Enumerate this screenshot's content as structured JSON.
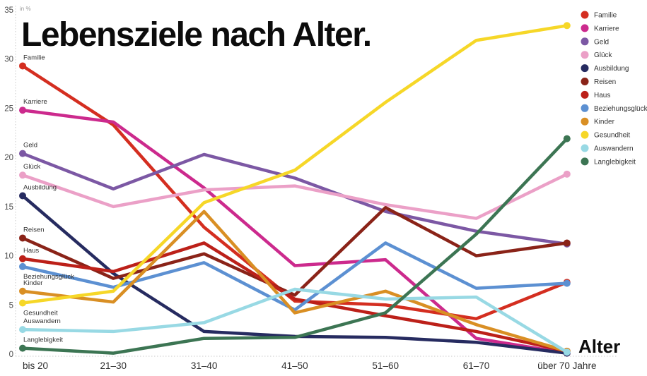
{
  "title": "Lebensziele nach Alter.",
  "chart_data": {
    "type": "line",
    "title": "Lebensziele nach Alter.",
    "unit_label": "in %",
    "xlabel": "Alter",
    "ylim": [
      0,
      35
    ],
    "yticks": [
      0,
      5,
      10,
      15,
      20,
      25,
      30,
      35
    ],
    "grid": "dotted-axes-only",
    "legend_position": "top-right",
    "categories": [
      "bis 20",
      "21–30",
      "31–40",
      "41–50",
      "51–60",
      "61–70",
      "über 70 Jahre"
    ],
    "series": [
      {
        "name": "Familie",
        "color": "#d42e20",
        "label_side": "above",
        "values": [
          29.3,
          23.3,
          12.9,
          5.4,
          5.0,
          3.6,
          7.3
        ]
      },
      {
        "name": "Karriere",
        "color": "#cc2a8d",
        "label_side": "above",
        "values": [
          24.8,
          23.6,
          16.9,
          9.0,
          9.6,
          1.6,
          0.1
        ]
      },
      {
        "name": "Geld",
        "color": "#7c58a4",
        "label_side": "above",
        "values": [
          20.4,
          16.8,
          20.3,
          17.9,
          14.5,
          12.5,
          11.2
        ]
      },
      {
        "name": "Glück",
        "color": "#eba0c7",
        "label_side": "above",
        "values": [
          18.2,
          15.0,
          16.7,
          17.1,
          15.2,
          13.8,
          18.3
        ]
      },
      {
        "name": "Ausbildung",
        "color": "#262b60",
        "label_side": "above",
        "values": [
          16.1,
          8.2,
          2.3,
          1.8,
          1.7,
          1.2,
          0.1
        ]
      },
      {
        "name": "Reisen",
        "color": "#8a2318",
        "label_side": "above",
        "values": [
          11.8,
          7.7,
          10.2,
          6.0,
          14.9,
          10.0,
          11.3
        ]
      },
      {
        "name": "Haus",
        "color": "#bc2019",
        "label_side": "above",
        "values": [
          9.7,
          8.4,
          11.3,
          5.6,
          3.9,
          2.3,
          0.3
        ]
      },
      {
        "name": "Beziehungsglück",
        "color": "#5c90d2",
        "label_side": "below",
        "values": [
          8.9,
          6.8,
          9.3,
          4.5,
          11.3,
          6.7,
          7.2
        ]
      },
      {
        "name": "Kinder",
        "color": "#d98f24",
        "label_side": "above",
        "values": [
          6.4,
          5.3,
          14.5,
          4.2,
          6.4,
          3.0,
          0.3
        ]
      },
      {
        "name": "Gesundheit",
        "color": "#f6d728",
        "label_side": "below",
        "values": [
          5.2,
          6.4,
          15.4,
          18.7,
          25.6,
          31.9,
          33.4
        ]
      },
      {
        "name": "Auswandern",
        "color": "#98d9e4",
        "label_side": "above",
        "values": [
          2.5,
          2.3,
          3.2,
          6.6,
          5.6,
          5.8,
          0.2
        ]
      },
      {
        "name": "Langlebigkeit",
        "color": "#3c7553",
        "label_side": "above",
        "values": [
          0.6,
          0.1,
          1.6,
          1.7,
          4.2,
          12.2,
          21.9
        ]
      }
    ]
  }
}
